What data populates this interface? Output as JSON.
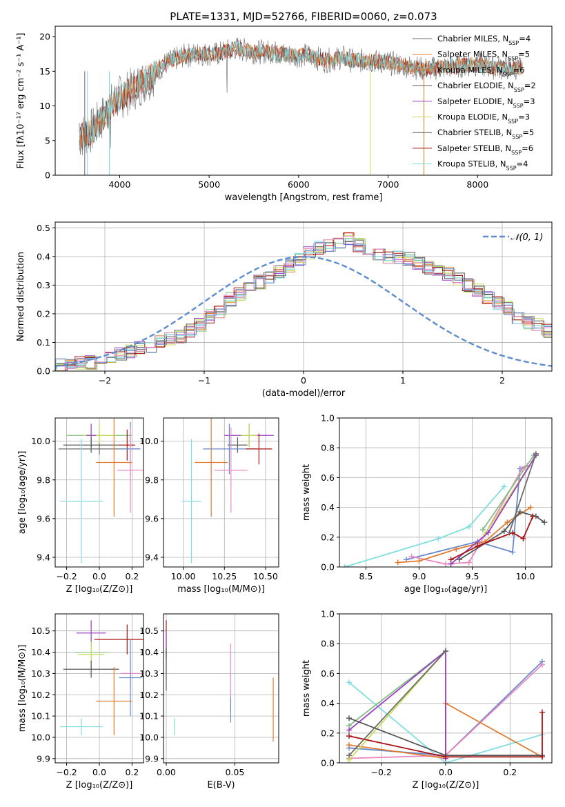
{
  "figure_title": "PLATE=1331, MJD=52766, FIBERID=0060, z=0.073",
  "colors": {
    "c0": "#6b6b6b",
    "c1": "#e07b2e",
    "c2": "#7fbf7f",
    "c3": "#9b3bc4",
    "c4": "#ccdd55",
    "c5": "#555555",
    "c6": "#aa1111",
    "c7": "#80dde0",
    "c8": "#6688cc",
    "c9": "#e887c0"
  },
  "chart_data": [
    {
      "id": "spectrum",
      "type": "line",
      "title": "PLATE=1331, MJD=52766, FIBERID=0060, z=0.073",
      "xlabel": "wavelength [Angstrom, rest frame]",
      "ylabel": "Flux [fλ10⁻¹⁷ erg cm⁻² s⁻¹ A⁻¹]",
      "xlim": [
        3280,
        8830
      ],
      "ylim": [
        0,
        21.5
      ],
      "xticks": [
        4000,
        5000,
        6000,
        7000,
        8000
      ],
      "yticks": [
        0,
        5,
        10,
        15,
        20
      ],
      "grid": false,
      "legend_position": "top-right",
      "legend": [
        "Chabrier MILES, N_SSP=4",
        "Salpeter MILES, N_SSP=5",
        "Kroupa MILES, N_SSP=6",
        "Chabrier ELODIE, N_SSP=2",
        "Salpeter ELODIE, N_SSP=3",
        "Kroupa ELODIE, N_SSP=3",
        "Chabrier STELIB, N_SSP=5",
        "Salpeter STELIB, N_SSP=6",
        "Kroupa STELIB, N_SSP=4"
      ],
      "legend_colors": [
        "c0",
        "c1",
        "c1",
        "c5",
        "c3",
        "c4",
        "c5",
        "c6",
        "c7"
      ],
      "continuum_x": [
        3550,
        3700,
        3850,
        3950,
        4100,
        4300,
        4500,
        4700,
        4900,
        5100,
        5300,
        5500,
        5700,
        5900,
        6100,
        6300,
        6500,
        6600,
        6800,
        7000,
        7200,
        7400,
        7600,
        7800,
        8000,
        8200,
        8400,
        8500
      ],
      "continuum_y": [
        5.5,
        6.5,
        9.0,
        10.8,
        12.0,
        13.8,
        16.0,
        17.2,
        17.5,
        17.5,
        18.3,
        17.8,
        17.8,
        17.3,
        17.3,
        16.5,
        17.0,
        16.5,
        16.5,
        16.2,
        15.8,
        15.3,
        15.5,
        15.8,
        16.0,
        15.5,
        15.5,
        15.5
      ]
    },
    {
      "id": "residuals",
      "type": "line",
      "xlabel": "(data-model)/error",
      "ylabel": "Normed distribution",
      "xlim": [
        -2.5,
        2.5
      ],
      "ylim": [
        0,
        0.52
      ],
      "xticks": [
        -2,
        -1,
        0,
        1,
        2
      ],
      "yticks": [
        0.0,
        0.1,
        0.2,
        0.3,
        0.4,
        0.5
      ],
      "grid": true,
      "legend_position": "top-right",
      "legend": [
        "𝒩(0, 1)"
      ],
      "bin_width": 0.1,
      "hist_x0": -2.5,
      "hist_values": [
        0.02,
        0.02,
        0.03,
        0.03,
        0.04,
        0.05,
        0.06,
        0.07,
        0.08,
        0.09,
        0.1,
        0.11,
        0.12,
        0.14,
        0.16,
        0.19,
        0.21,
        0.25,
        0.27,
        0.29,
        0.31,
        0.33,
        0.35,
        0.37,
        0.39,
        0.41,
        0.43,
        0.44,
        0.45,
        0.46,
        0.44,
        0.43,
        0.41,
        0.4,
        0.4,
        0.39,
        0.38,
        0.36,
        0.35,
        0.34,
        0.32,
        0.3,
        0.28,
        0.26,
        0.24,
        0.22,
        0.19,
        0.17,
        0.16,
        0.14,
        0.12,
        0.1,
        0.09,
        0.08,
        0.07,
        0.06,
        0.05,
        0.045,
        0.04,
        0.035,
        0.03,
        0.03,
        0.025,
        0.02,
        0.02
      ]
    },
    {
      "id": "age-vs-Z",
      "type": "scatter",
      "xlabel": "Z [log₁₀(Z/Z⊙)]",
      "ylabel": "age  [log₁₀(age/yr)]",
      "xlim": [
        -0.27,
        0.27
      ],
      "ylim": [
        9.35,
        10.12
      ],
      "xticks": [
        -0.2,
        0.0,
        0.2
      ],
      "yticks": [
        9.4,
        9.6,
        9.8,
        10.0
      ],
      "grid": true,
      "points": [
        {
          "x": 0.0,
          "y": 10.03,
          "ex": 0.2,
          "ey": 0.06,
          "c": "c2"
        },
        {
          "x": 0.0,
          "y": 10.03,
          "ex": 0.1,
          "ey": 0.06,
          "c": "c4"
        },
        {
          "x": -0.05,
          "y": 10.03,
          "ex": 0.03,
          "ey": 0.06,
          "c": "c3"
        },
        {
          "x": -0.05,
          "y": 9.98,
          "ex": 0.17,
          "ey": 0.04,
          "c": "c5"
        },
        {
          "x": 0.0,
          "y": 9.96,
          "ex": 0.25,
          "ey": 0.03,
          "c": "c0"
        },
        {
          "x": 0.17,
          "y": 9.98,
          "ex": 0.05,
          "ey": 0.08,
          "c": "c6"
        },
        {
          "x": 0.19,
          "y": 9.96,
          "ex": 0.06,
          "ey": 0.14,
          "c": "c8"
        },
        {
          "x": 0.09,
          "y": 9.89,
          "ex": 0.11,
          "ey": 0.28,
          "c": "c1"
        },
        {
          "x": 0.19,
          "y": 9.85,
          "ex": 0.08,
          "ey": 0.22,
          "c": "c9"
        },
        {
          "x": -0.11,
          "y": 9.69,
          "ex": 0.13,
          "ey": 0.32,
          "c": "c7"
        }
      ]
    },
    {
      "id": "age-vs-mass",
      "type": "scatter",
      "xlabel": "mass [log₁₀(M/M⊙)]",
      "ylabel": "",
      "xlim": [
        9.88,
        10.58
      ],
      "ylim": [
        9.35,
        10.12
      ],
      "xticks": [
        10.0,
        10.25,
        10.5
      ],
      "yticks": [
        9.4,
        9.6,
        9.8,
        10.0
      ],
      "grid": true,
      "points": [
        {
          "x": 10.4,
          "y": 10.03,
          "ex": 0.15,
          "ey": 0.06,
          "c": "c3"
        },
        {
          "x": 10.4,
          "y": 10.03,
          "ex": 0.04,
          "ey": 0.06,
          "c": "c2"
        },
        {
          "x": 10.4,
          "y": 10.03,
          "ex": 0.05,
          "ey": 0.06,
          "c": "c4"
        },
        {
          "x": 10.33,
          "y": 9.98,
          "ex": 0.06,
          "ey": 0.04,
          "c": "c5"
        },
        {
          "x": 10.28,
          "y": 9.96,
          "ex": 0.16,
          "ey": 0.13,
          "c": "c8"
        },
        {
          "x": 10.46,
          "y": 9.96,
          "ex": 0.08,
          "ey": 0.08,
          "c": "c6"
        },
        {
          "x": 10.17,
          "y": 9.89,
          "ex": 0.1,
          "ey": 0.28,
          "c": "c1"
        },
        {
          "x": 10.29,
          "y": 9.85,
          "ex": 0.1,
          "ey": 0.22,
          "c": "c9"
        },
        {
          "x": 10.05,
          "y": 9.69,
          "ex": 0.06,
          "ey": 0.32,
          "c": "c7"
        }
      ]
    },
    {
      "id": "mass-weight-vs-age",
      "type": "line",
      "xlabel": "age  [log₁₀(age/yr)]",
      "ylabel": "mass weight",
      "xlim": [
        8.25,
        10.25
      ],
      "ylim": [
        0,
        1.0
      ],
      "xticks": [
        8.5,
        9.0,
        9.5,
        10.0
      ],
      "yticks": [
        0.0,
        0.2,
        0.4,
        0.6,
        0.8,
        1.0
      ],
      "grid": true,
      "series": [
        {
          "c": "c7",
          "x": [
            8.3,
            9.18,
            9.47,
            9.8
          ],
          "y": [
            0.0,
            0.19,
            0.27,
            0.54
          ]
        },
        {
          "c": "c8",
          "x": [
            8.88,
            9.55,
            9.88,
            9.95,
            10.02
          ],
          "y": [
            0.05,
            0.17,
            0.1,
            0.66,
            0.68
          ]
        },
        {
          "c": "c9",
          "x": [
            8.93,
            9.25,
            9.47,
            9.97,
            10.02
          ],
          "y": [
            0.07,
            0.02,
            0.03,
            0.66,
            0.68
          ]
        },
        {
          "c": "c1",
          "x": [
            8.8,
            9.0,
            9.35,
            9.62,
            9.83,
            10.05
          ],
          "y": [
            0.03,
            0.04,
            0.12,
            0.17,
            0.3,
            0.4
          ]
        },
        {
          "c": "c2",
          "x": [
            9.6,
            10.08
          ],
          "y": [
            0.25,
            0.75
          ]
        },
        {
          "c": "c4",
          "x": [
            9.62,
            10.1
          ],
          "y": [
            0.22,
            0.75
          ]
        },
        {
          "c": "c3",
          "x": [
            9.3,
            9.65,
            10.1
          ],
          "y": [
            0.02,
            0.23,
            0.75
          ]
        },
        {
          "c": "c5",
          "x": [
            9.38,
            9.8,
            9.95,
            10.1,
            10.18
          ],
          "y": [
            0.05,
            0.24,
            0.37,
            0.34,
            0.3
          ]
        },
        {
          "c": "c6",
          "x": [
            9.3,
            9.55,
            9.88,
            9.98,
            10.07
          ],
          "y": [
            0.05,
            0.14,
            0.23,
            0.19,
            0.34
          ]
        },
        {
          "c": "c0",
          "x": [
            9.85,
            10.1
          ],
          "y": [
            0.23,
            0.76
          ]
        }
      ]
    },
    {
      "id": "mass-vs-Z",
      "type": "scatter",
      "xlabel": "Z [log₁₀(Z/Z⊙)]",
      "ylabel": "mass [log₁₀(M/M⊙)]",
      "xlim": [
        -0.27,
        0.27
      ],
      "ylim": [
        9.88,
        10.58
      ],
      "xticks": [
        -0.2,
        0.0,
        0.2
      ],
      "yticks": [
        9.9,
        10.0,
        10.1,
        10.2,
        10.3,
        10.4,
        10.5
      ],
      "grid": true,
      "points": [
        {
          "x": -0.05,
          "y": 10.49,
          "ex": 0.09,
          "ey": 0.06,
          "c": "c3"
        },
        {
          "x": 0.17,
          "y": 10.46,
          "ex": 0.2,
          "ey": 0.07,
          "c": "c6"
        },
        {
          "x": -0.05,
          "y": 10.4,
          "ex": 0.1,
          "ey": 0.04,
          "c": "c2"
        },
        {
          "x": -0.05,
          "y": 10.39,
          "ex": 0.08,
          "ey": 0.06,
          "c": "c4"
        },
        {
          "x": -0.05,
          "y": 10.32,
          "ex": 0.17,
          "ey": 0.04,
          "c": "c5"
        },
        {
          "x": 0.19,
          "y": 10.3,
          "ex": 0.06,
          "ey": 0.06,
          "c": "c9"
        },
        {
          "x": 0.19,
          "y": 10.28,
          "ex": 0.07,
          "ey": 0.18,
          "c": "c8"
        },
        {
          "x": 0.09,
          "y": 10.17,
          "ex": 0.11,
          "ey": 0.16,
          "c": "c1"
        },
        {
          "x": -0.11,
          "y": 10.05,
          "ex": 0.13,
          "ey": 0.04,
          "c": "c7"
        }
      ]
    },
    {
      "id": "mass-vs-EBV",
      "type": "scatter",
      "xlabel": "E(B-V)",
      "ylabel": "",
      "xlim": [
        -0.002,
        0.082
      ],
      "ylim": [
        9.88,
        10.58
      ],
      "xticks": [
        0.0,
        0.05
      ],
      "yticks": [
        9.9,
        10.0,
        10.1,
        10.2,
        10.3,
        10.4,
        10.5
      ],
      "grid": true,
      "points": [
        {
          "x": 0.0,
          "y": 10.46,
          "ex": 0,
          "ey": 0.09,
          "c": "c6"
        },
        {
          "x": 0.0,
          "y": 10.4,
          "ex": 0,
          "ey": 0.1,
          "c": "c3"
        },
        {
          "x": 0.0,
          "y": 10.32,
          "ex": 0,
          "ey": 0.1,
          "c": "c5"
        },
        {
          "x": 0.047,
          "y": 10.28,
          "ex": 0,
          "ey": 0.16,
          "c": "c9"
        },
        {
          "x": 0.047,
          "y": 10.13,
          "ex": 0,
          "ey": 0.06,
          "c": "c8"
        },
        {
          "x": 0.078,
          "y": 10.13,
          "ex": 0,
          "ey": 0.15,
          "c": "c1"
        },
        {
          "x": 0.006,
          "y": 10.05,
          "ex": 0,
          "ey": 0.04,
          "c": "c7"
        }
      ]
    },
    {
      "id": "mass-weight-vs-Z",
      "type": "line",
      "xlabel": "Z [log₁₀(Z/Z⊙)]",
      "ylabel": "mass weight",
      "xlim": [
        -0.33,
        0.33
      ],
      "ylim": [
        0,
        1.0
      ],
      "xticks": [
        -0.2,
        0.0,
        0.2
      ],
      "yticks": [
        0.0,
        0.2,
        0.4,
        0.6,
        0.8,
        1.0
      ],
      "grid": true,
      "series": [
        {
          "c": "c7",
          "x": [
            -0.3,
            0.0,
            0.3
          ],
          "y": [
            0.54,
            0.0,
            0.19
          ]
        },
        {
          "c": "c8",
          "x": [
            -0.3,
            0.0,
            0.3
          ],
          "y": [
            0.1,
            0.05,
            0.68
          ]
        },
        {
          "c": "c9",
          "x": [
            -0.3,
            0.0,
            0.3
          ],
          "y": [
            0.03,
            0.05,
            0.66
          ]
        },
        {
          "c": "c1",
          "x": [
            -0.3,
            0.0,
            0.0,
            0.3
          ],
          "y": [
            0.12,
            0.03,
            0.4,
            0.04
          ]
        },
        {
          "c": "c2",
          "x": [
            -0.3,
            0.0
          ],
          "y": [
            0.25,
            0.75
          ]
        },
        {
          "c": "c4",
          "x": [
            -0.3,
            0.0
          ],
          "y": [
            0.02,
            0.75
          ]
        },
        {
          "c": "c3",
          "x": [
            -0.3,
            0.0,
            0.0
          ],
          "y": [
            0.22,
            0.75,
            0.03
          ]
        },
        {
          "c": "c5",
          "x": [
            -0.3,
            0.0,
            0.3
          ],
          "y": [
            0.3,
            0.05,
            0.05
          ]
        },
        {
          "c": "c6",
          "x": [
            -0.3,
            0.0,
            0.3,
            0.3
          ],
          "y": [
            0.18,
            0.04,
            0.04,
            0.34
          ]
        },
        {
          "c": "c0",
          "x": [
            -0.3,
            0.0
          ],
          "y": [
            0.05,
            0.75
          ]
        }
      ]
    }
  ]
}
